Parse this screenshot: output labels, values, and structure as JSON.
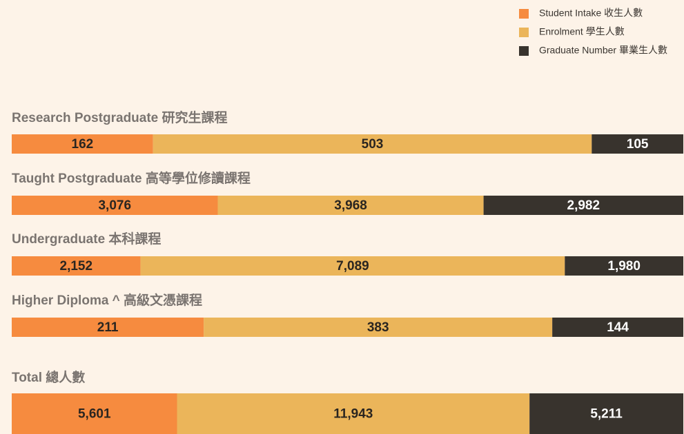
{
  "chart_data": {
    "type": "bar",
    "categories": [
      "Research Postgraduate 研究生課程",
      "Taught Postgraduate 高等學位修讀課程",
      "Undergraduate 本科課程",
      "Higher Diploma ^  高級文憑課程",
      "Total 總人數"
    ],
    "series": [
      {
        "name": "Student Intake  收生人數",
        "color": "#f68b3f",
        "values": [
          162,
          3076,
          2152,
          211,
          5601
        ],
        "value_labels": [
          "162",
          "3,076",
          "2,152",
          "211",
          "5,601"
        ]
      },
      {
        "name": "Enrolment 學生人數",
        "color": "#ebb55a",
        "values": [
          503,
          3968,
          7089,
          383,
          11943
        ],
        "value_labels": [
          "503",
          "3,968",
          "7,089",
          "383",
          "11,943"
        ]
      },
      {
        "name": "Graduate Number  畢業生人數",
        "color": "#38332d",
        "values": [
          105,
          2982,
          1980,
          144,
          5211
        ],
        "value_labels": [
          "105",
          "2,982",
          "1,980",
          "144",
          "5,211"
        ]
      }
    ]
  }
}
